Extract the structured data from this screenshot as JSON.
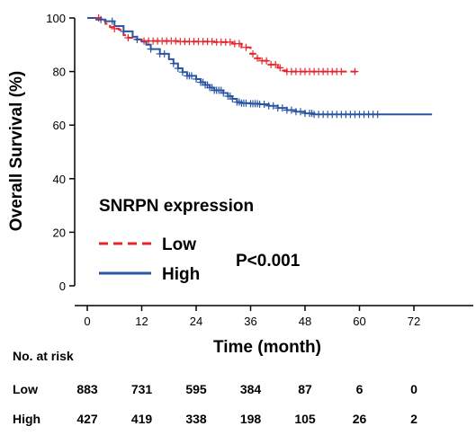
{
  "chart_data": {
    "type": "line",
    "subtype": "kaplan-meier",
    "xlabel": "Time (month)",
    "ylabel": "Overall Survival (%)",
    "xlim": [
      0,
      75
    ],
    "ylim": [
      0,
      100
    ],
    "xticks": [
      0,
      12,
      24,
      36,
      48,
      60,
      72
    ],
    "yticks": [
      0,
      20,
      40,
      60,
      80,
      100
    ],
    "grid": false,
    "legend": {
      "title": "SNRPN expression",
      "placement": "bottom-left"
    },
    "annotation": "P<0.001",
    "series": [
      {
        "name": "Low",
        "color": "#e8242b",
        "style": "dashed",
        "points": [
          [
            0,
            100
          ],
          [
            2,
            100
          ],
          [
            3,
            98.8
          ],
          [
            4,
            97.8
          ],
          [
            5,
            96.6
          ],
          [
            6,
            96
          ],
          [
            7,
            95.6
          ],
          [
            8,
            93.6
          ],
          [
            9,
            92.6
          ],
          [
            10,
            92
          ],
          [
            12,
            91.4
          ],
          [
            20,
            91.2
          ],
          [
            28,
            91
          ],
          [
            32,
            90.4
          ],
          [
            34,
            89
          ],
          [
            36,
            86.6
          ],
          [
            37,
            85
          ],
          [
            38,
            84
          ],
          [
            40,
            82.6
          ],
          [
            42,
            81.4
          ],
          [
            43,
            80.4
          ],
          [
            44,
            80
          ],
          [
            60,
            80
          ]
        ],
        "censor": [
          2.5,
          6,
          9,
          11,
          12.5,
          13.5,
          14.5,
          15.5,
          16.5,
          17.5,
          18.5,
          19.5,
          20.5,
          21.5,
          22.5,
          23.5,
          24.5,
          25.5,
          26.5,
          27.5,
          28.5,
          29.5,
          30.5,
          31.5,
          32.5,
          33.5,
          35,
          36.5,
          37.5,
          38.5,
          39.5,
          40.5,
          41.5,
          42.5,
          44,
          45,
          46,
          47,
          48,
          49,
          50,
          51,
          52,
          53,
          54,
          55,
          56,
          59
        ]
      },
      {
        "name": "High",
        "color": "#2a55a3",
        "style": "solid",
        "points": [
          [
            0,
            100
          ],
          [
            2,
            99.4
          ],
          [
            4,
            98.8
          ],
          [
            6,
            97
          ],
          [
            8,
            95
          ],
          [
            10,
            93
          ],
          [
            11,
            92
          ],
          [
            12,
            91.2
          ],
          [
            13,
            90
          ],
          [
            14,
            88.4
          ],
          [
            16,
            86.6
          ],
          [
            18,
            84.6
          ],
          [
            19,
            83
          ],
          [
            20,
            81.2
          ],
          [
            21,
            79.8
          ],
          [
            22,
            78.4
          ],
          [
            24,
            77.2
          ],
          [
            25,
            76
          ],
          [
            26,
            75
          ],
          [
            27,
            74
          ],
          [
            28,
            73
          ],
          [
            30,
            72
          ],
          [
            31,
            70.8
          ],
          [
            32,
            69.8
          ],
          [
            33,
            68.6
          ],
          [
            34,
            68.2
          ],
          [
            36,
            68
          ],
          [
            38,
            67.8
          ],
          [
            40,
            67.2
          ],
          [
            42,
            66.4
          ],
          [
            44,
            65.6
          ],
          [
            46,
            65
          ],
          [
            48,
            64.4
          ],
          [
            50,
            64
          ],
          [
            76,
            64
          ]
        ],
        "censor": [
          3,
          5.5,
          8,
          11,
          14,
          16,
          17,
          19,
          20,
          21,
          22,
          22.5,
          23,
          24,
          25,
          25.5,
          26,
          26.5,
          27,
          27.5,
          28,
          28.5,
          29,
          29.5,
          30,
          31,
          31.5,
          32,
          33,
          33.5,
          34,
          34.5,
          35,
          36,
          36.5,
          37,
          37.5,
          38,
          39,
          40,
          41,
          42,
          43,
          44,
          45,
          46,
          47,
          48,
          49,
          49.5,
          50,
          51,
          52,
          53,
          54,
          55,
          56,
          57,
          58,
          59,
          60,
          61,
          62,
          63,
          64
        ]
      }
    ]
  },
  "risk_table": {
    "title": "No. at risk",
    "times": [
      0,
      12,
      24,
      36,
      48,
      60,
      72
    ],
    "rows": [
      {
        "label": "Low",
        "counts": [
          "883",
          "731",
          "595",
          "384",
          "87",
          "6",
          "0"
        ]
      },
      {
        "label": "High",
        "counts": [
          "427",
          "419",
          "338",
          "198",
          "105",
          "26",
          "2"
        ]
      }
    ]
  }
}
